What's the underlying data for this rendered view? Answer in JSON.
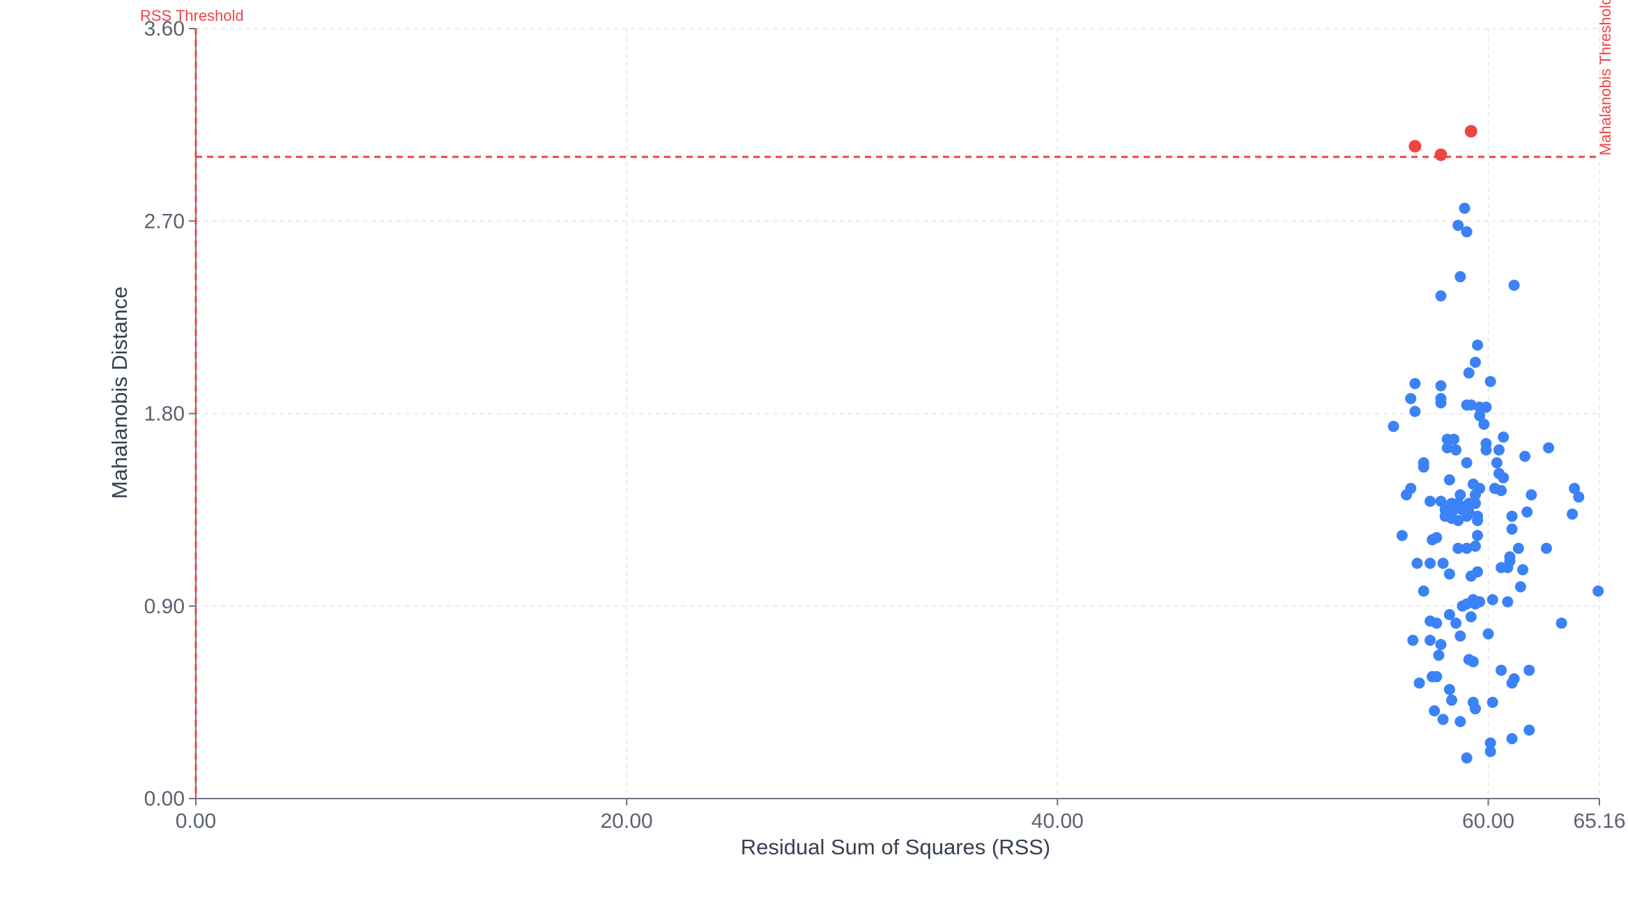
{
  "chart_data": {
    "type": "scatter",
    "xlabel": "Residual Sum of Squares (RSS)",
    "ylabel": "Mahalanobis Distance",
    "xlim": [
      0,
      65.16
    ],
    "ylim": [
      0,
      3.6
    ],
    "x_ticks": [
      "0.00",
      "20.00",
      "40.00",
      "60.00",
      "65.16"
    ],
    "x_tick_values": [
      0,
      20,
      40,
      60,
      65.16
    ],
    "y_ticks": [
      "0.00",
      "0.90",
      "1.80",
      "2.70",
      "3.60"
    ],
    "y_tick_values": [
      0,
      0.9,
      1.8,
      2.7,
      3.6
    ],
    "grid": true,
    "thresholds": {
      "rss": {
        "label": "RSS Threshold",
        "value": 0.0
      },
      "mahalanobis": {
        "label": "Mahalanobis Threshold",
        "value": 3.0
      }
    },
    "colors": {
      "inlier": "#3b82f6",
      "outlier": "#ef4444",
      "threshold": "#ef4444"
    },
    "outliers": [
      {
        "x": 56.6,
        "y": 3.05
      },
      {
        "x": 57.8,
        "y": 3.01
      },
      {
        "x": 59.2,
        "y": 3.12
      }
    ],
    "inliers": [
      [
        58.9,
        2.76
      ],
      [
        58.6,
        2.68
      ],
      [
        59.0,
        2.65
      ],
      [
        58.7,
        2.44
      ],
      [
        57.8,
        2.35
      ],
      [
        61.2,
        2.4
      ],
      [
        59.5,
        2.12
      ],
      [
        59.4,
        2.04
      ],
      [
        59.1,
        1.99
      ],
      [
        60.1,
        1.95
      ],
      [
        56.6,
        1.94
      ],
      [
        57.8,
        1.93
      ],
      [
        56.4,
        1.87
      ],
      [
        57.8,
        1.87
      ],
      [
        57.8,
        1.85
      ],
      [
        59.0,
        1.84
      ],
      [
        59.2,
        1.84
      ],
      [
        59.6,
        1.83
      ],
      [
        59.9,
        1.83
      ],
      [
        56.6,
        1.81
      ],
      [
        59.6,
        1.79
      ],
      [
        59.8,
        1.75
      ],
      [
        55.6,
        1.74
      ],
      [
        58.1,
        1.68
      ],
      [
        58.4,
        1.68
      ],
      [
        60.7,
        1.69
      ],
      [
        59.9,
        1.66
      ],
      [
        58.1,
        1.64
      ],
      [
        58.5,
        1.63
      ],
      [
        59.9,
        1.63
      ],
      [
        60.5,
        1.63
      ],
      [
        62.8,
        1.64
      ],
      [
        61.7,
        1.6
      ],
      [
        57.0,
        1.57
      ],
      [
        57.0,
        1.55
      ],
      [
        59.0,
        1.57
      ],
      [
        60.4,
        1.57
      ],
      [
        60.5,
        1.52
      ],
      [
        60.7,
        1.5
      ],
      [
        58.2,
        1.49
      ],
      [
        59.3,
        1.47
      ],
      [
        56.4,
        1.45
      ],
      [
        59.6,
        1.45
      ],
      [
        60.3,
        1.45
      ],
      [
        60.6,
        1.44
      ],
      [
        56.2,
        1.42
      ],
      [
        58.7,
        1.42
      ],
      [
        59.4,
        1.42
      ],
      [
        62.0,
        1.42
      ],
      [
        64.0,
        1.45
      ],
      [
        64.2,
        1.41
      ],
      [
        57.3,
        1.39
      ],
      [
        57.8,
        1.39
      ],
      [
        58.3,
        1.38
      ],
      [
        58.6,
        1.38
      ],
      [
        59.1,
        1.38
      ],
      [
        59.4,
        1.38
      ],
      [
        58.0,
        1.35
      ],
      [
        58.4,
        1.35
      ],
      [
        58.8,
        1.35
      ],
      [
        59.1,
        1.34
      ],
      [
        58.0,
        1.32
      ],
      [
        58.3,
        1.31
      ],
      [
        58.6,
        1.3
      ],
      [
        59.0,
        1.32
      ],
      [
        59.5,
        1.32
      ],
      [
        59.5,
        1.3
      ],
      [
        61.1,
        1.32
      ],
      [
        61.8,
        1.34
      ],
      [
        63.9,
        1.33
      ],
      [
        56.0,
        1.23
      ],
      [
        57.4,
        1.21
      ],
      [
        57.6,
        1.22
      ],
      [
        59.5,
        1.23
      ],
      [
        61.1,
        1.26
      ],
      [
        58.6,
        1.17
      ],
      [
        59.0,
        1.17
      ],
      [
        59.4,
        1.18
      ],
      [
        61.4,
        1.17
      ],
      [
        62.7,
        1.17
      ],
      [
        61.0,
        1.13
      ],
      [
        56.7,
        1.1
      ],
      [
        57.3,
        1.1
      ],
      [
        57.9,
        1.1
      ],
      [
        61.0,
        1.11
      ],
      [
        59.5,
        1.06
      ],
      [
        60.6,
        1.08
      ],
      [
        60.9,
        1.08
      ],
      [
        61.6,
        1.07
      ],
      [
        58.2,
        1.05
      ],
      [
        59.2,
        1.04
      ],
      [
        61.5,
        0.99
      ],
      [
        57.0,
        0.97
      ],
      [
        65.1,
        0.97
      ],
      [
        59.3,
        0.93
      ],
      [
        59.6,
        0.92
      ],
      [
        60.2,
        0.93
      ],
      [
        60.9,
        0.92
      ],
      [
        58.8,
        0.9
      ],
      [
        59.0,
        0.91
      ],
      [
        59.4,
        0.91
      ],
      [
        58.2,
        0.86
      ],
      [
        59.2,
        0.85
      ],
      [
        57.3,
        0.83
      ],
      [
        57.6,
        0.82
      ],
      [
        58.5,
        0.82
      ],
      [
        63.4,
        0.82
      ],
      [
        58.7,
        0.76
      ],
      [
        60.0,
        0.77
      ],
      [
        56.5,
        0.74
      ],
      [
        57.3,
        0.74
      ],
      [
        57.8,
        0.72
      ],
      [
        57.7,
        0.67
      ],
      [
        59.1,
        0.65
      ],
      [
        59.3,
        0.64
      ],
      [
        60.6,
        0.6
      ],
      [
        61.9,
        0.6
      ],
      [
        57.4,
        0.57
      ],
      [
        57.6,
        0.57
      ],
      [
        56.8,
        0.54
      ],
      [
        61.1,
        0.54
      ],
      [
        61.2,
        0.56
      ],
      [
        58.2,
        0.51
      ],
      [
        58.3,
        0.46
      ],
      [
        59.3,
        0.45
      ],
      [
        60.2,
        0.45
      ],
      [
        59.4,
        0.42
      ],
      [
        57.5,
        0.41
      ],
      [
        57.9,
        0.37
      ],
      [
        58.7,
        0.36
      ],
      [
        61.1,
        0.28
      ],
      [
        61.9,
        0.32
      ],
      [
        60.1,
        0.26
      ],
      [
        60.1,
        0.22
      ],
      [
        59.0,
        0.19
      ]
    ]
  }
}
